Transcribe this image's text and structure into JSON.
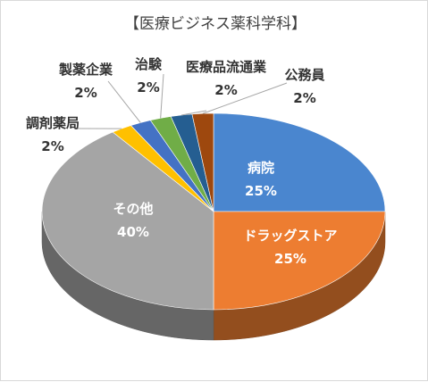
{
  "chart_data": {
    "type": "pie",
    "title": "【医療ビジネス薬科学科】",
    "slices": [
      {
        "label": "病院",
        "value": 25,
        "value_text": "25%",
        "color": "#4a86cf"
      },
      {
        "label": "ドラッグストア",
        "value": 25,
        "value_text": "25%",
        "color": "#ed7d31"
      },
      {
        "label": "その他",
        "value": 40,
        "value_text": "40%",
        "color": "#a5a5a5"
      },
      {
        "label": "調剤薬局",
        "value": 2,
        "value_text": "2%",
        "color": "#ffc000"
      },
      {
        "label": "製薬企業",
        "value": 2,
        "value_text": "2%",
        "color": "#4472c4"
      },
      {
        "label": "治験",
        "value": 2,
        "value_text": "2%",
        "color": "#70ad47"
      },
      {
        "label": "医療品流通業",
        "value": 2,
        "value_text": "2%",
        "color": "#255e91"
      },
      {
        "label": "公務員",
        "value": 2,
        "value_text": "2%",
        "color": "#9e480e"
      }
    ],
    "style": "3d-pie",
    "legend": "none"
  }
}
